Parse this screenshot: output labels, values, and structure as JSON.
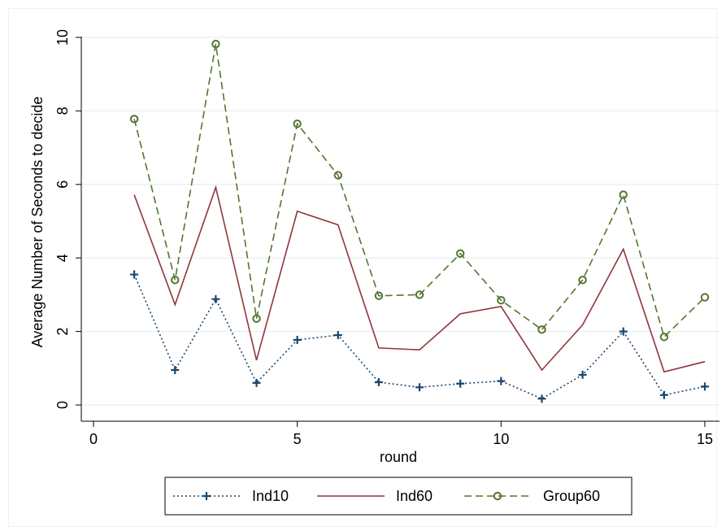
{
  "chart_data": {
    "type": "line",
    "title": "",
    "xlabel": "round",
    "ylabel": "Average Number of Seconds to decide",
    "xlim": [
      0,
      15
    ],
    "ylim": [
      0,
      10
    ],
    "xticks": [
      0,
      5,
      10,
      15
    ],
    "yticks": [
      0,
      2,
      4,
      6,
      8,
      10
    ],
    "xtick_labels": [
      "0",
      "5",
      "10",
      "15"
    ],
    "ytick_labels": [
      "0",
      "2",
      "4",
      "6",
      "8",
      "10"
    ],
    "grid": true,
    "legend_position": "bottom",
    "x": [
      1,
      2,
      3,
      4,
      5,
      6,
      7,
      8,
      9,
      10,
      11,
      12,
      13,
      14,
      15
    ],
    "series": [
      {
        "name": "Ind10",
        "color": "#1a476f",
        "line_style": "dotted",
        "marker": "plus",
        "values": [
          3.55,
          0.95,
          2.88,
          0.6,
          1.77,
          1.9,
          0.62,
          0.48,
          0.58,
          0.65,
          0.17,
          0.82,
          2.0,
          0.27,
          0.5
        ]
      },
      {
        "name": "Ind60",
        "color": "#90353b",
        "line_style": "solid",
        "marker": "none",
        "values": [
          5.72,
          2.73,
          5.92,
          1.22,
          5.27,
          4.9,
          1.55,
          1.5,
          2.48,
          2.68,
          0.95,
          2.18,
          4.24,
          0.9,
          1.18
        ]
      },
      {
        "name": "Group60",
        "color": "#55752f",
        "line_style": "dashed",
        "marker": "circle",
        "values": [
          7.78,
          3.4,
          9.82,
          2.35,
          7.65,
          6.25,
          2.97,
          3.0,
          4.12,
          2.85,
          2.05,
          3.4,
          5.72,
          1.85,
          2.93
        ]
      }
    ]
  }
}
